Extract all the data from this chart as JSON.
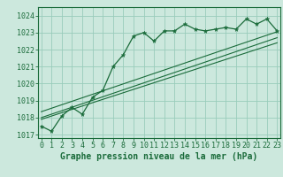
{
  "xlabel": "Graphe pression niveau de la mer (hPa)",
  "bg_color": "#cce8dd",
  "grid_color": "#99ccbb",
  "line_color": "#1a6b3a",
  "hours": [
    0,
    1,
    2,
    3,
    4,
    5,
    6,
    7,
    8,
    9,
    10,
    11,
    12,
    13,
    14,
    15,
    16,
    17,
    18,
    19,
    20,
    21,
    22,
    23
  ],
  "pressure": [
    1017.5,
    1017.2,
    1018.1,
    1018.6,
    1018.2,
    1019.2,
    1019.6,
    1021.0,
    1021.7,
    1022.8,
    1023.0,
    1022.5,
    1023.1,
    1023.1,
    1023.5,
    1023.2,
    1023.1,
    1023.2,
    1023.3,
    1023.2,
    1023.8,
    1023.5,
    1023.8,
    1023.1
  ],
  "trend_lines": [
    [
      0,
      1017.9,
      23,
      1022.4
    ],
    [
      0,
      1018.0,
      23,
      1022.7
    ],
    [
      0,
      1018.35,
      23,
      1023.05
    ]
  ],
  "ylim_min": 1016.8,
  "ylim_max": 1024.5,
  "yticks": [
    1017,
    1018,
    1019,
    1020,
    1021,
    1022,
    1023,
    1024
  ],
  "xticks": [
    0,
    1,
    2,
    3,
    4,
    5,
    6,
    7,
    8,
    9,
    10,
    11,
    12,
    13,
    14,
    15,
    16,
    17,
    18,
    19,
    20,
    21,
    22,
    23
  ],
  "ytick_fontsize": 6,
  "xtick_fontsize": 6,
  "xlabel_fontsize": 7
}
